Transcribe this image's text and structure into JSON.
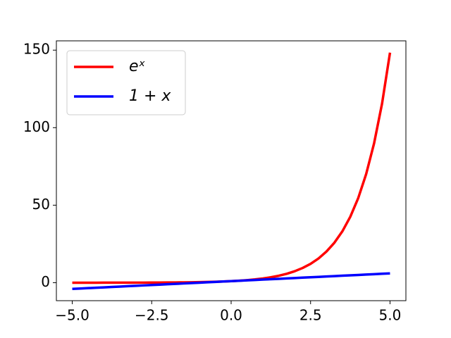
{
  "chart_data": {
    "type": "line",
    "x": [
      -5,
      -4.75,
      -4.5,
      -4.25,
      -4,
      -3.75,
      -3.5,
      -3.25,
      -3,
      -2.75,
      -2.5,
      -2.25,
      -2,
      -1.75,
      -1.5,
      -1.25,
      -1,
      -0.75,
      -0.5,
      -0.25,
      0,
      0.25,
      0.5,
      0.75,
      1,
      1.25,
      1.5,
      1.75,
      2,
      2.25,
      2.5,
      2.75,
      3,
      3.25,
      3.5,
      3.75,
      4,
      4.25,
      4.5,
      4.75,
      5
    ],
    "series": [
      {
        "name": "eˣ",
        "color": "#ff0000",
        "values": [
          0.01,
          0.01,
          0.01,
          0.01,
          0.02,
          0.02,
          0.03,
          0.04,
          0.05,
          0.06,
          0.08,
          0.11,
          0.14,
          0.17,
          0.22,
          0.29,
          0.37,
          0.47,
          0.61,
          0.78,
          1,
          1.28,
          1.65,
          2.12,
          2.72,
          3.49,
          4.48,
          5.75,
          7.39,
          9.49,
          12.18,
          15.64,
          20.09,
          25.79,
          33.12,
          42.52,
          54.6,
          70.11,
          90.02,
          115.58,
          148.41
        ]
      },
      {
        "name": "1 + x",
        "color": "#0000ff",
        "values": [
          -4,
          -3.75,
          -3.5,
          -3.25,
          -3,
          -2.75,
          -2.5,
          -2.25,
          -2,
          -1.75,
          -1.5,
          -1.25,
          -1,
          -0.75,
          -0.5,
          -0.25,
          0,
          0.25,
          0.5,
          0.75,
          1,
          1.25,
          1.5,
          1.75,
          2,
          2.25,
          2.5,
          2.75,
          3,
          3.25,
          3.5,
          3.75,
          4,
          4.25,
          4.5,
          4.75,
          5,
          5.25,
          5.5,
          5.75,
          6
        ]
      }
    ],
    "xlim": [
      -5.5,
      5.5
    ],
    "ylim": [
      -11.6,
      156
    ],
    "xticks": [
      {
        "value": -5,
        "label": "−5.0"
      },
      {
        "value": -2.5,
        "label": "−2.5"
      },
      {
        "value": 0,
        "label": "0.0"
      },
      {
        "value": 2.5,
        "label": "2.5"
      },
      {
        "value": 5,
        "label": "5.0"
      }
    ],
    "yticks": [
      0,
      50,
      100,
      150
    ],
    "grid": false,
    "legend": "upper-left"
  }
}
